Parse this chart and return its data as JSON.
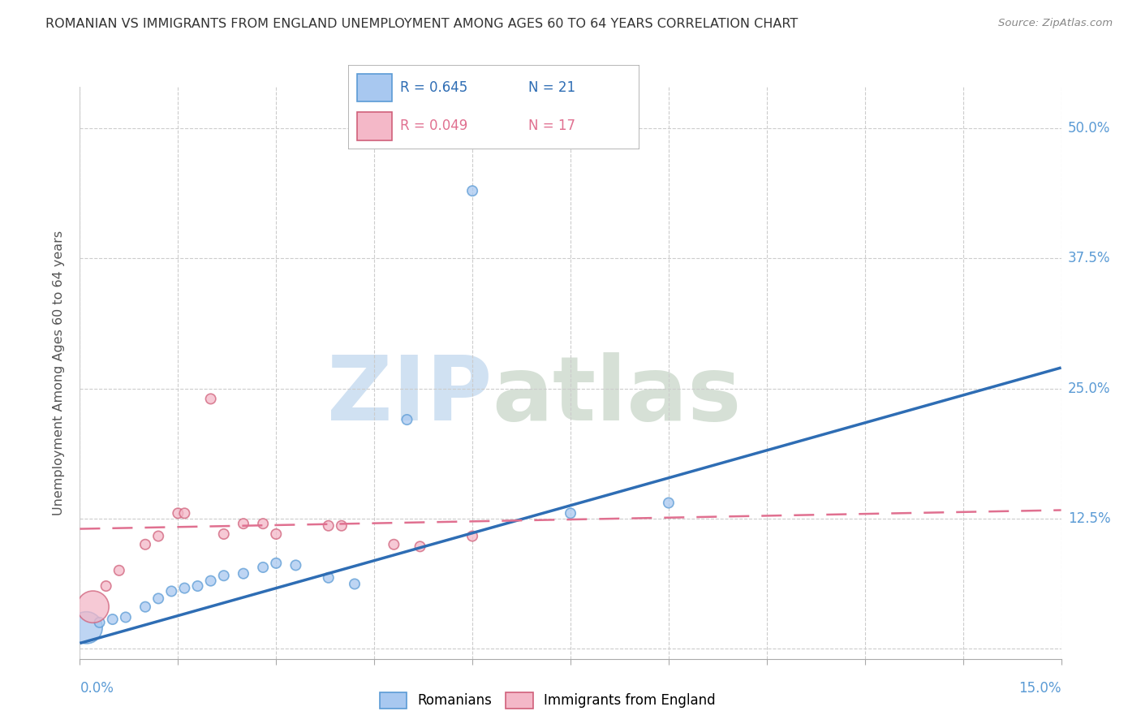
{
  "title": "ROMANIAN VS IMMIGRANTS FROM ENGLAND UNEMPLOYMENT AMONG AGES 60 TO 64 YEARS CORRELATION CHART",
  "source": "Source: ZipAtlas.com",
  "ylabel": "Unemployment Among Ages 60 to 64 years",
  "xlim": [
    0.0,
    0.15
  ],
  "ylim": [
    -0.01,
    0.54
  ],
  "ytick_vals": [
    0.0,
    0.125,
    0.25,
    0.375,
    0.5
  ],
  "ytick_labels": [
    "",
    "12.5%",
    "25.0%",
    "37.5%",
    "50.0%"
  ],
  "blue_label": "Romanians",
  "pink_label": "Immigrants from England",
  "blue_r": "0.645",
  "blue_n": "21",
  "pink_r": "0.049",
  "pink_n": "17",
  "blue_fill": "#A8C8F0",
  "blue_edge": "#5B9BD5",
  "blue_line": "#2E6DB4",
  "pink_fill": "#F4B8C8",
  "pink_edge": "#D0607A",
  "pink_line": "#E07090",
  "axis_text_color": "#5B9BD5",
  "title_color": "#333333",
  "source_color": "#888888",
  "grid_color": "#CCCCCC",
  "bg_color": "#FFFFFF",
  "blue_pts": [
    [
      0.001,
      0.02
    ],
    [
      0.003,
      0.025
    ],
    [
      0.005,
      0.03
    ],
    [
      0.007,
      0.03
    ],
    [
      0.009,
      0.035
    ],
    [
      0.01,
      0.04
    ],
    [
      0.012,
      0.05
    ],
    [
      0.014,
      0.055
    ],
    [
      0.016,
      0.055
    ],
    [
      0.018,
      0.06
    ],
    [
      0.02,
      0.06
    ],
    [
      0.022,
      0.065
    ],
    [
      0.025,
      0.07
    ],
    [
      0.028,
      0.075
    ],
    [
      0.03,
      0.08
    ],
    [
      0.033,
      0.085
    ],
    [
      0.038,
      0.075
    ],
    [
      0.042,
      0.065
    ],
    [
      0.05,
      0.22
    ],
    [
      0.075,
      0.13
    ],
    [
      0.09,
      0.14
    ]
  ],
  "blue_sizes": [
    800,
    80,
    80,
    80,
    80,
    80,
    80,
    80,
    80,
    80,
    80,
    80,
    80,
    80,
    80,
    80,
    80,
    80,
    80,
    80,
    80
  ],
  "pink_pts": [
    [
      0.001,
      0.025
    ],
    [
      0.003,
      0.04
    ],
    [
      0.005,
      0.055
    ],
    [
      0.007,
      0.065
    ],
    [
      0.009,
      0.08
    ],
    [
      0.01,
      0.1
    ],
    [
      0.013,
      0.12
    ],
    [
      0.015,
      0.135
    ],
    [
      0.017,
      0.135
    ],
    [
      0.02,
      0.12
    ],
    [
      0.022,
      0.115
    ],
    [
      0.025,
      0.105
    ],
    [
      0.028,
      0.11
    ],
    [
      0.03,
      0.115
    ],
    [
      0.038,
      0.12
    ],
    [
      0.045,
      0.115
    ],
    [
      0.048,
      0.105
    ]
  ],
  "pink_sizes": [
    800,
    80,
    80,
    80,
    80,
    80,
    80,
    80,
    80,
    80,
    80,
    80,
    80,
    80,
    80,
    80,
    80
  ]
}
